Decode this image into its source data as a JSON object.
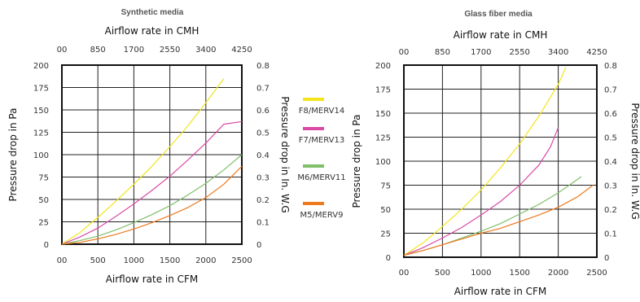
{
  "colors": {
    "F8/MERV14": "#f2e51a",
    "F7/MERV13": "#d94aa6",
    "M6/MERV11": "#7fbf6a",
    "M5/MERV9": "#ee7a1e"
  },
  "legend": {
    "items": [
      "F8/MERV14",
      "F7/MERV13",
      "M6/MERV11",
      "M5/MERV9"
    ]
  },
  "chart_data": [
    {
      "type": "line",
      "title": "Synthetic media",
      "xlabel": "Airflow rate in CFM",
      "x2label": "Airflow rate in CMH",
      "ylabel": "Pressure drop in Pa",
      "y2label": "Pressure drop in In. W.G",
      "xlim": [
        0,
        2500
      ],
      "ylim": [
        0,
        200
      ],
      "x2lim": [
        0,
        4250
      ],
      "y2lim": [
        0,
        0.8
      ],
      "xticks": [
        "00",
        "500",
        "1000",
        "1500",
        "2000",
        "2500"
      ],
      "yticks": [
        "0",
        "25",
        "50",
        "75",
        "100",
        "125",
        "150",
        "175",
        "200"
      ],
      "x2ticks": [
        "00",
        "850",
        "1700",
        "2550",
        "3400",
        "4250"
      ],
      "y2ticks": [
        "0",
        "0.1",
        "0.2",
        "0.3",
        "0.4",
        "0.5",
        "0.6",
        "0.7",
        "0.8"
      ],
      "grid": true,
      "series": [
        {
          "name": "F8/MERV14",
          "x": [
            0,
            250,
            500,
            750,
            1000,
            1250,
            1500,
            1750,
            2000,
            2250
          ],
          "y": [
            0,
            13,
            30,
            48,
            67,
            87,
            109,
            132,
            158,
            185
          ]
        },
        {
          "name": "F7/MERV13",
          "x": [
            0,
            250,
            500,
            750,
            1000,
            1250,
            1500,
            1750,
            2000,
            2250,
            2500
          ],
          "y": [
            0,
            8,
            18,
            31,
            45,
            60,
            76,
            94,
            113,
            134,
            137
          ]
        },
        {
          "name": "M6/MERV11",
          "x": [
            0,
            250,
            500,
            750,
            1000,
            1250,
            1500,
            1750,
            2000,
            2250,
            2500
          ],
          "y": [
            0,
            4,
            9,
            16,
            24,
            33,
            43,
            55,
            68,
            83,
            100
          ]
        },
        {
          "name": "M5/MERV9",
          "x": [
            0,
            250,
            500,
            750,
            1000,
            1250,
            1500,
            1750,
            2000,
            2250,
            2500
          ],
          "y": [
            0,
            2,
            6,
            11,
            17,
            24,
            32,
            41,
            52,
            67,
            87
          ]
        }
      ]
    },
    {
      "type": "line",
      "title": "Glass fiber media",
      "xlabel": "Airflow rate in CFM",
      "x2label": "Airflow rate in CMH",
      "ylabel": "Pressure drop in Pa",
      "y2label": "Pressure drop in In. W.G",
      "xlim": [
        0,
        2500
      ],
      "ylim": [
        0,
        200
      ],
      "x2lim": [
        0,
        4250
      ],
      "y2lim": [
        0,
        0.8
      ],
      "xticks": [
        "00",
        "500",
        "1000",
        "1500",
        "2000",
        "2500"
      ],
      "yticks": [
        "0",
        "25",
        "50",
        "75",
        "100",
        "125",
        "150",
        "175",
        "200"
      ],
      "x2ticks": [
        "00",
        "850",
        "1700",
        "2550",
        "3400",
        "4250"
      ],
      "y2ticks": [
        "0",
        "0.1",
        "0.2",
        "0.3",
        "0.4",
        "0.5",
        "0.6",
        "0.7",
        "0.8"
      ],
      "grid": true,
      "series": [
        {
          "name": "F8/MERV14",
          "x": [
            0,
            250,
            500,
            750,
            1000,
            1250,
            1500,
            1750,
            2000,
            2100
          ],
          "y": [
            2,
            15,
            32,
            50,
            70,
            93,
            118,
            147,
            180,
            198
          ]
        },
        {
          "name": "F7/MERV13",
          "x": [
            0,
            250,
            500,
            750,
            1000,
            1250,
            1500,
            1750,
            1900,
            2000
          ],
          "y": [
            2,
            10,
            20,
            31,
            44,
            58,
            75,
            96,
            115,
            135
          ]
        },
        {
          "name": "M6/MERV11",
          "x": [
            0,
            250,
            500,
            750,
            1000,
            1250,
            1500,
            1750,
            2000,
            2250,
            2300
          ],
          "y": [
            2,
            7,
            13,
            20,
            27,
            35,
            45,
            55,
            67,
            81,
            84
          ]
        },
        {
          "name": "M5/MERV9",
          "x": [
            0,
            250,
            500,
            750,
            1000,
            1250,
            1500,
            1750,
            2000,
            2250,
            2450
          ],
          "y": [
            2,
            7,
            13,
            19,
            25,
            30,
            37,
            44,
            52,
            63,
            75
          ]
        }
      ]
    }
  ]
}
